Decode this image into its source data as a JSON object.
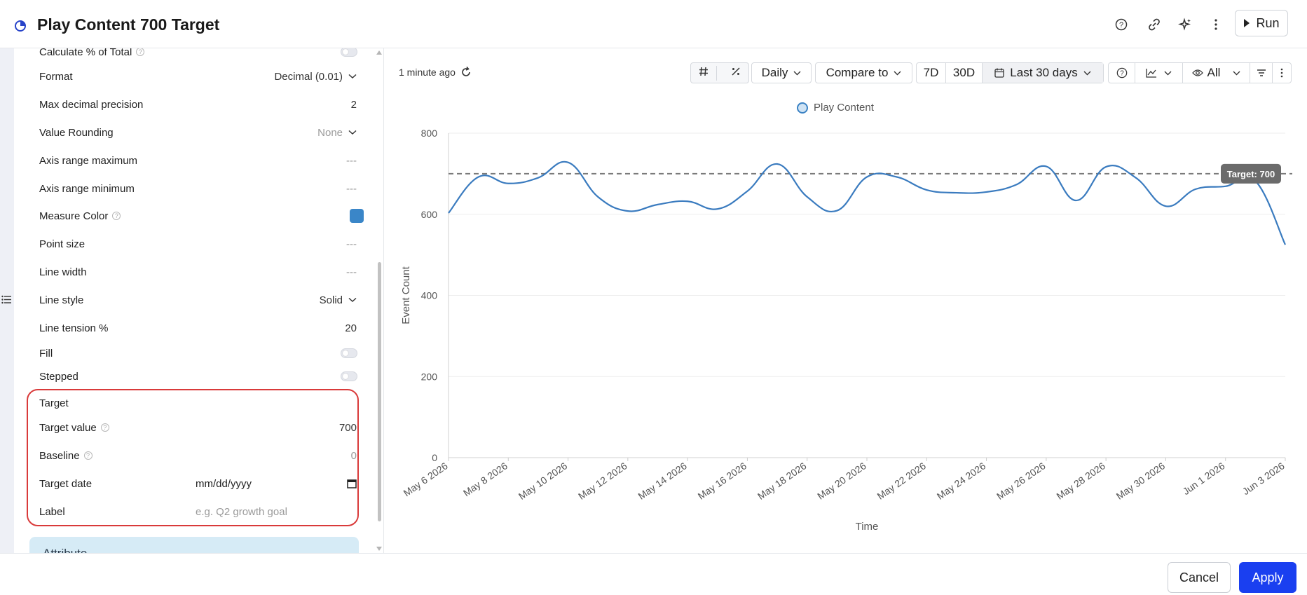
{
  "header": {
    "title": "Play Content 700 Target",
    "run_label": "Run"
  },
  "settings": {
    "calculate_pct": {
      "label": "Calculate % of Total"
    },
    "format": {
      "label": "Format",
      "value": "Decimal (0.01)"
    },
    "max_decimal": {
      "label": "Max decimal precision",
      "value": "2"
    },
    "value_rounding": {
      "label": "Value Rounding",
      "value": "None"
    },
    "axis_max": {
      "label": "Axis range maximum",
      "value": "---"
    },
    "axis_min": {
      "label": "Axis range minimum",
      "value": "---"
    },
    "measure_color": {
      "label": "Measure Color",
      "color": "#3a86c8"
    },
    "point_size": {
      "label": "Point size",
      "value": "---"
    },
    "line_width": {
      "label": "Line width",
      "value": "---"
    },
    "line_style": {
      "label": "Line style",
      "value": "Solid"
    },
    "line_tension": {
      "label": "Line tension %",
      "value": "20"
    },
    "fill": {
      "label": "Fill"
    },
    "stepped": {
      "label": "Stepped"
    },
    "target_section": {
      "label": "Target"
    },
    "target_value": {
      "label": "Target value",
      "value": "700"
    },
    "baseline": {
      "label": "Baseline",
      "value": "0"
    },
    "target_date": {
      "label": "Target date",
      "value": "mm/dd/yyyy"
    },
    "label_field": {
      "label": "Label",
      "placeholder": "e.g. Q2 growth goal"
    },
    "attribute_section": {
      "label": "Attribute"
    }
  },
  "toolbar": {
    "timestamp": "1 minute ago",
    "granularity": "Daily",
    "compare": "Compare to",
    "range_7d": "7D",
    "range_30d": "30D",
    "date_range": "Last 30 days",
    "visibility": "All"
  },
  "chart_data": {
    "type": "line",
    "series": [
      {
        "name": "Play Content",
        "color": "#3a7bbf",
        "values": [
          603,
          692,
          676,
          690,
          728,
          643,
          608,
          624,
          632,
          613,
          657,
          724,
          643,
          609,
          692,
          692,
          660,
          653,
          655,
          673,
          718,
          634,
          717,
          690,
          620,
          662,
          669,
          682,
          525
        ]
      }
    ],
    "x_tick_labels": [
      "May 6 2026",
      "May 8 2026",
      "May 10 2026",
      "May 12 2026",
      "May 14 2026",
      "May 16 2026",
      "May 18 2026",
      "May 20 2026",
      "May 22 2026",
      "May 24 2026",
      "May 26 2026",
      "May 28 2026",
      "May 30 2026",
      "Jun 1 2026",
      "Jun 3 2026"
    ],
    "y_ticks": [
      "0",
      "200",
      "400",
      "600",
      "800"
    ],
    "ylim": [
      0,
      800
    ],
    "xlabel": "Time",
    "ylabel": "Event Count",
    "target": {
      "value": 700,
      "label": "Target: 700"
    },
    "grid": true,
    "legend": "top-center"
  },
  "footer": {
    "cancel_label": "Cancel",
    "apply_label": "Apply"
  }
}
